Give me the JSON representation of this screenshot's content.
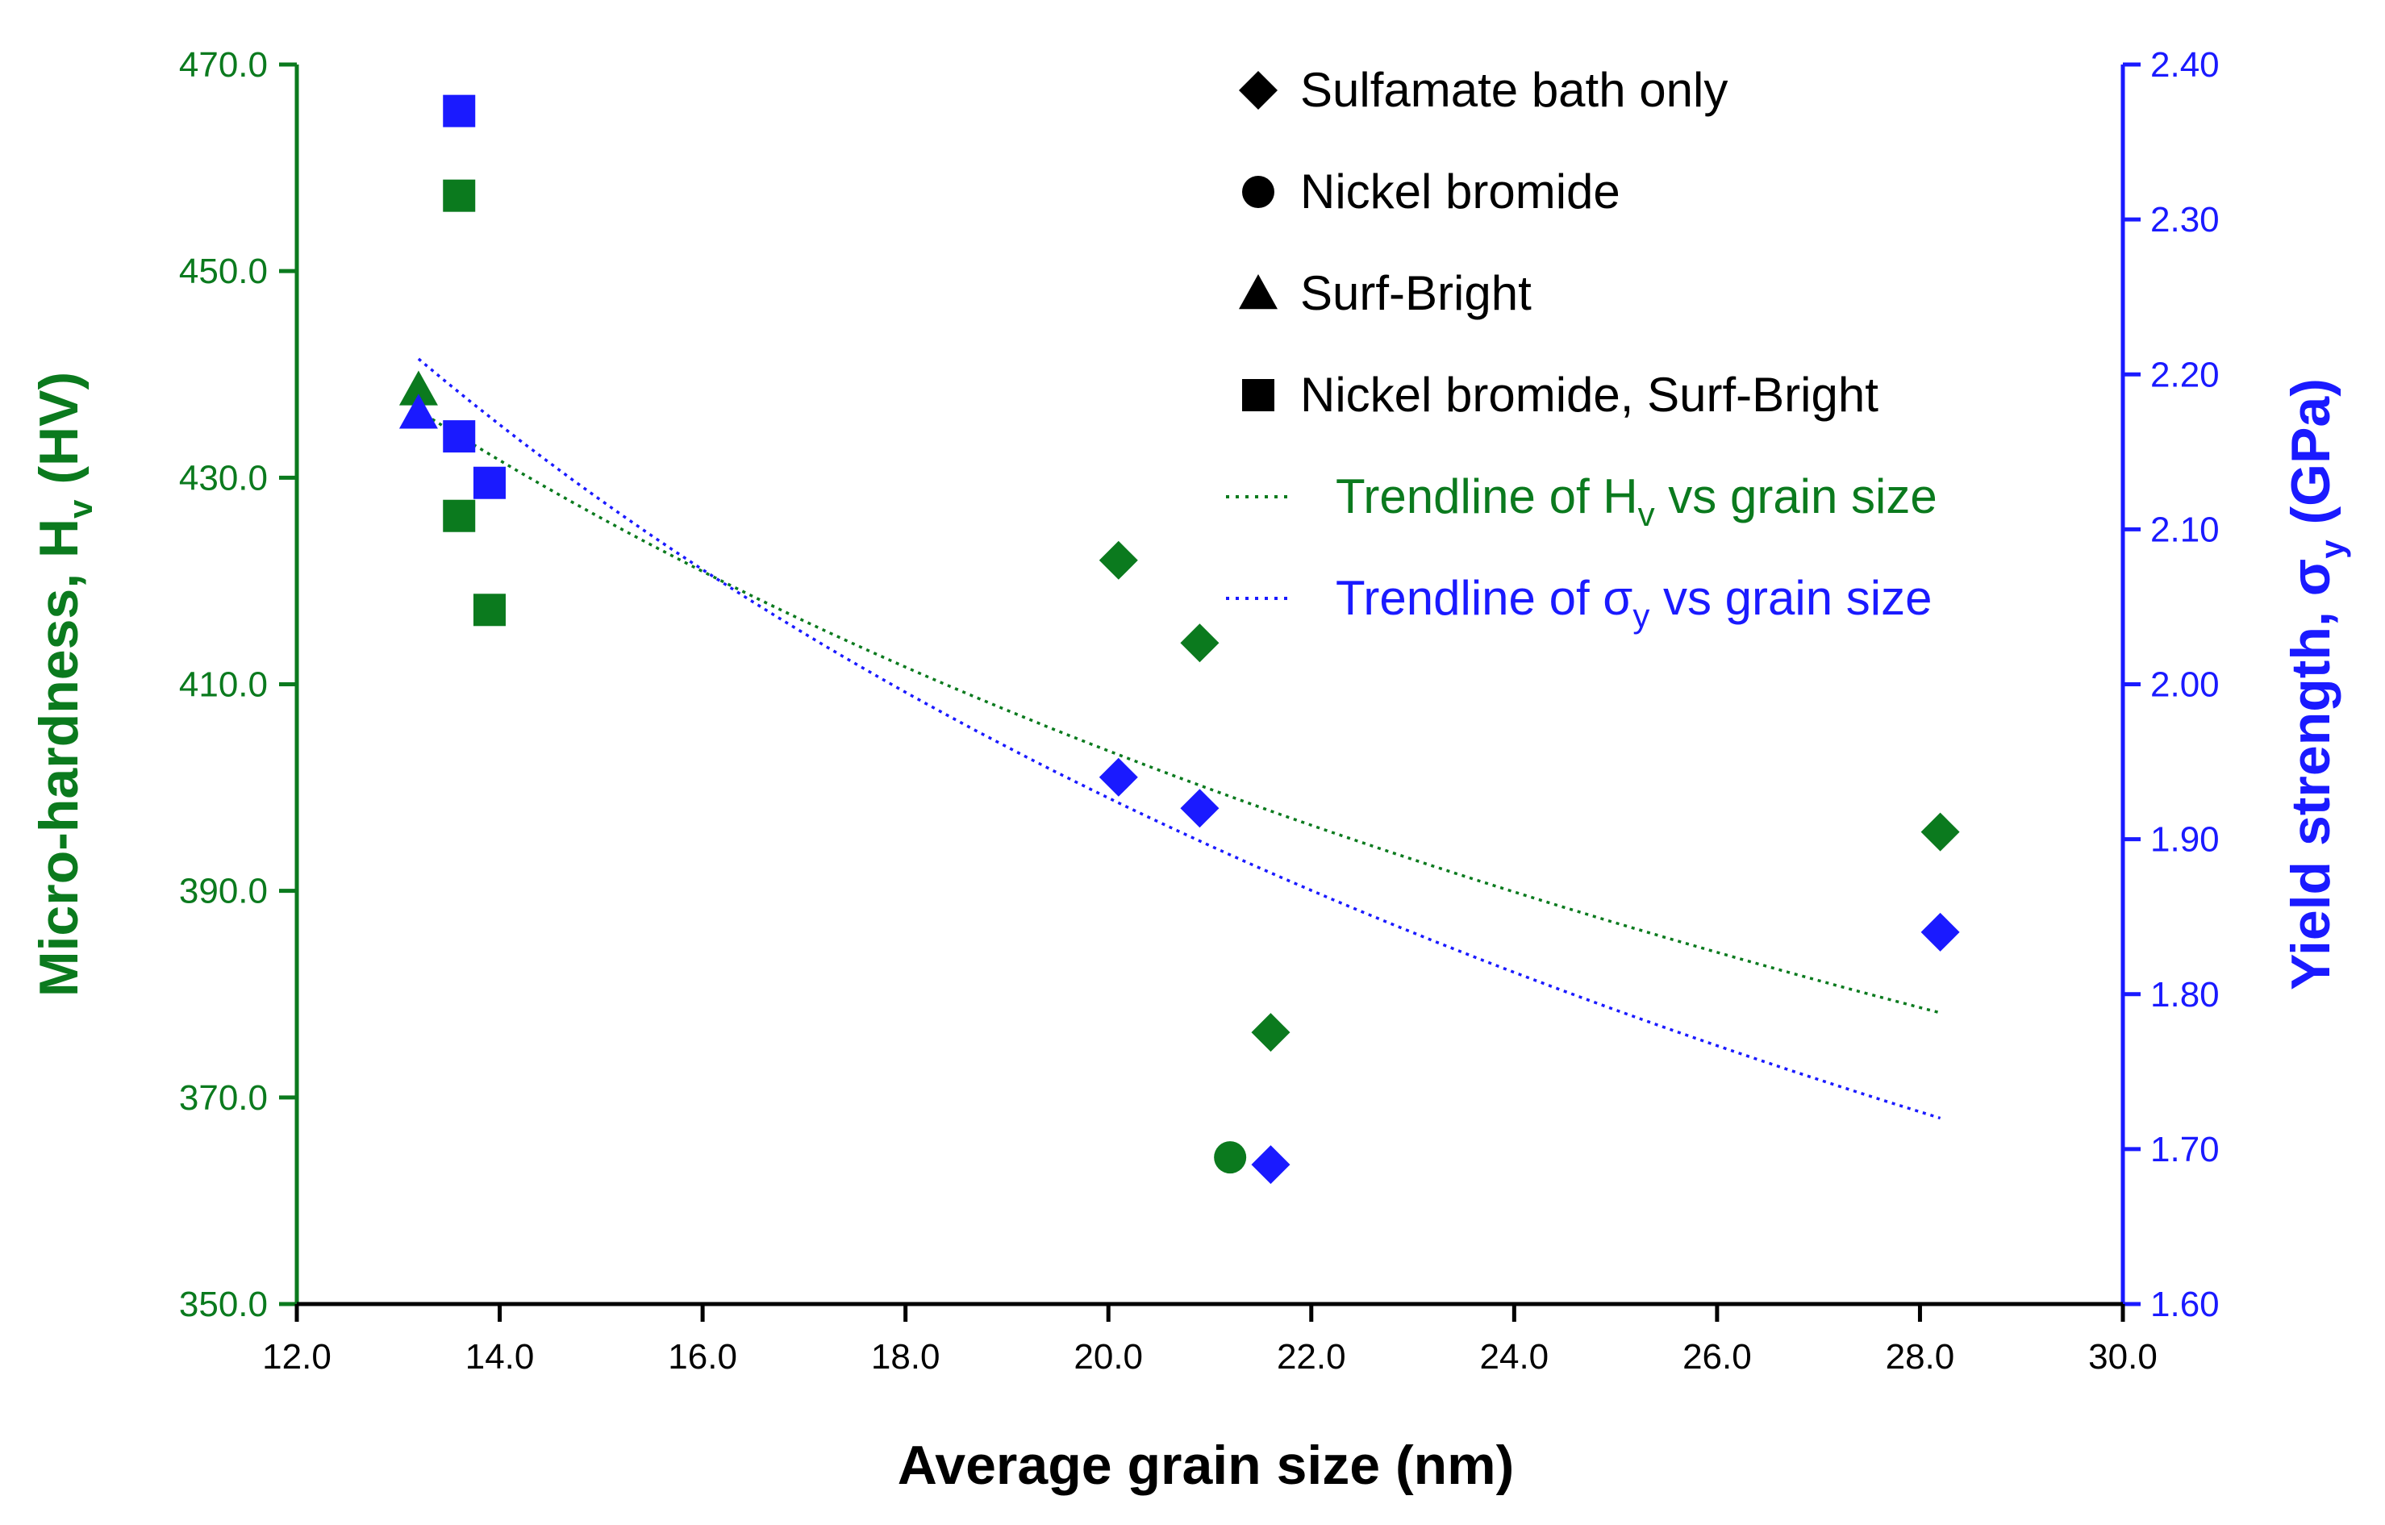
{
  "chart_data": {
    "type": "scatter",
    "title": "",
    "xlabel": "Average grain size (nm)",
    "ylabel_left": {
      "main": "Micro-hardness, H",
      "sub": "v",
      "tail": " (HV)"
    },
    "ylabel_right": {
      "main": "Yield strength, σ",
      "sub": "y",
      "tail": " (GPa)"
    },
    "xlim": [
      12.0,
      30.0
    ],
    "ylim_left": [
      350.0,
      470.0
    ],
    "ylim_right": [
      1.6,
      2.4
    ],
    "x_ticks": [
      "12.0",
      "14.0",
      "16.0",
      "18.0",
      "20.0",
      "22.0",
      "24.0",
      "26.0",
      "28.0",
      "30.0"
    ],
    "y_left_ticks": [
      "350.0",
      "370.0",
      "390.0",
      "410.0",
      "430.0",
      "450.0",
      "470.0"
    ],
    "y_right_ticks": [
      "1.60",
      "1.70",
      "1.80",
      "1.90",
      "2.00",
      "2.10",
      "2.20",
      "2.30",
      "2.40"
    ],
    "colors": {
      "hardness": "#0b7a1e",
      "yield": "#1a1aff",
      "legend_marker": "#000000"
    },
    "series": [
      {
        "name": "Micro-hardness",
        "axis": "left",
        "color": "#0b7a1e",
        "points": [
          {
            "x": 20.1,
            "y": 422.0,
            "marker": "diamond"
          },
          {
            "x": 20.9,
            "y": 414.0,
            "marker": "diamond"
          },
          {
            "x": 21.6,
            "y": 376.3,
            "marker": "diamond"
          },
          {
            "x": 28.2,
            "y": 395.7,
            "marker": "diamond"
          },
          {
            "x": 21.2,
            "y": 364.2,
            "marker": "circle"
          },
          {
            "x": 13.2,
            "y": 438.5,
            "marker": "triangle"
          },
          {
            "x": 13.6,
            "y": 457.3,
            "marker": "square"
          },
          {
            "x": 13.6,
            "y": 426.3,
            "marker": "square"
          },
          {
            "x": 13.9,
            "y": 417.2,
            "marker": "square"
          }
        ]
      },
      {
        "name": "Yield strength",
        "axis": "right",
        "color": "#1a1aff",
        "points": [
          {
            "x": 20.1,
            "y": 1.94,
            "marker": "diamond"
          },
          {
            "x": 20.9,
            "y": 1.92,
            "marker": "diamond"
          },
          {
            "x": 21.6,
            "y": 1.69,
            "marker": "diamond"
          },
          {
            "x": 28.2,
            "y": 1.84,
            "marker": "diamond"
          },
          {
            "x": 13.2,
            "y": 2.175,
            "marker": "triangle"
          },
          {
            "x": 13.6,
            "y": 2.37,
            "marker": "square"
          },
          {
            "x": 13.6,
            "y": 2.16,
            "marker": "square"
          },
          {
            "x": 13.9,
            "y": 2.13,
            "marker": "square"
          }
        ]
      }
    ],
    "trendlines": [
      {
        "name": "Trendline of Hv vs grain size",
        "axis": "left",
        "color": "#0b7a1e",
        "x_range": [
          13.2,
          28.2
        ],
        "y_start": 436.5,
        "y_end": 378.2
      },
      {
        "name": "Trendline of σy vs grain size",
        "axis": "right",
        "color": "#1a1aff",
        "x_range": [
          13.2,
          28.2
        ],
        "y_start": 2.21,
        "y_end": 1.72
      }
    ],
    "legend": {
      "placement": "top-right",
      "entries": [
        {
          "marker": "diamond",
          "label": "Sulfamate bath only",
          "color": "#000000"
        },
        {
          "marker": "circle",
          "label": "Nickel bromide",
          "color": "#000000"
        },
        {
          "marker": "triangle",
          "label": "Surf-Bright",
          "color": "#000000"
        },
        {
          "marker": "square",
          "label": "Nickel bromide, Surf-Bright",
          "color": "#000000"
        },
        {
          "marker": "dotted-line",
          "label_main": "Trendline of H",
          "label_sub": "v",
          "label_tail": " vs grain size",
          "color": "#0b7a1e"
        },
        {
          "marker": "dotted-line",
          "label_main": "Trendline of σ",
          "label_sub": "y",
          "label_tail": " vs grain size",
          "color": "#1a1aff"
        }
      ]
    }
  }
}
